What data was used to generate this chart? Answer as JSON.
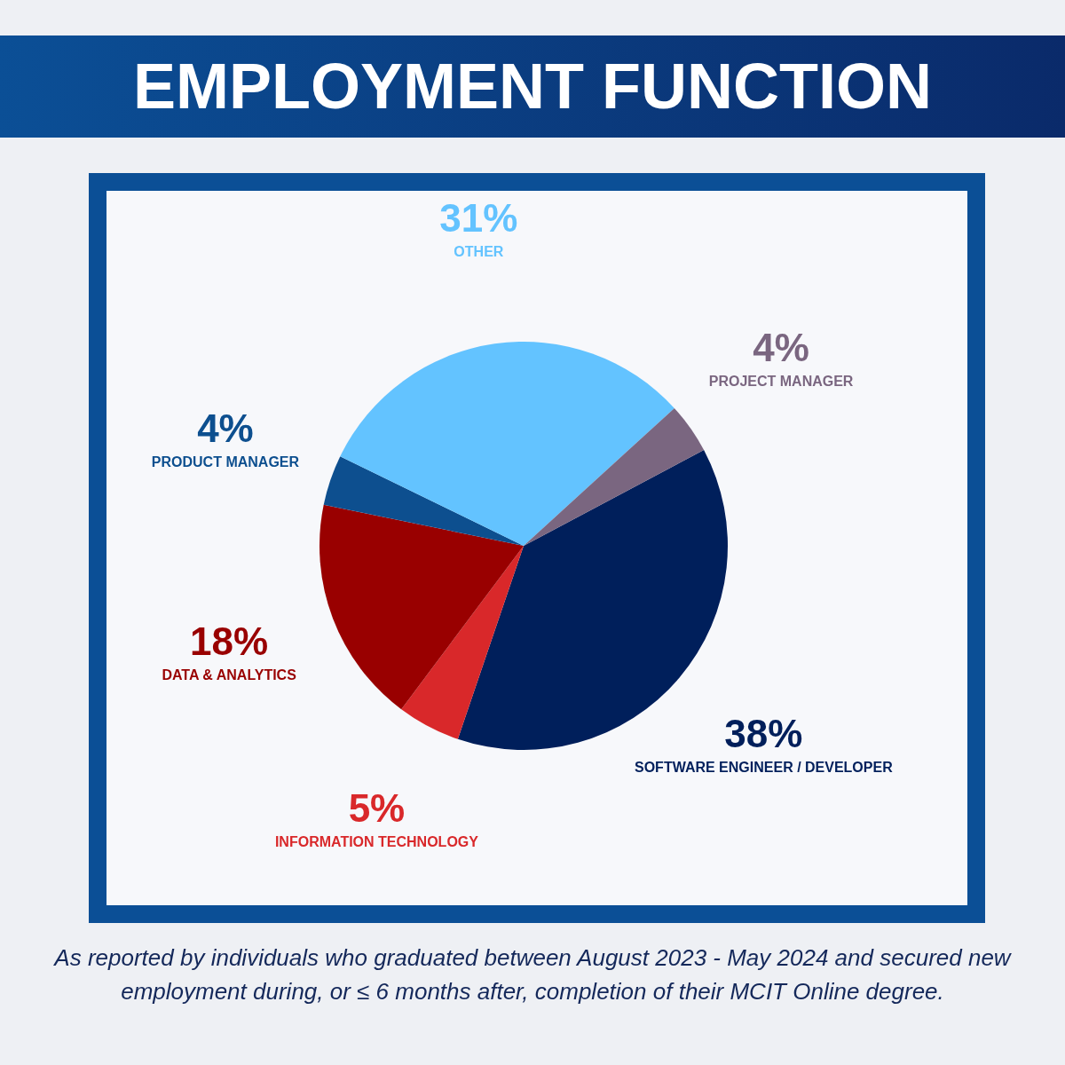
{
  "chart_data": {
    "type": "pie",
    "title": "EMPLOYMENT FUNCTION",
    "categories": [
      "SOFTWARE ENGINEER / DEVELOPER",
      "INFORMATION TECHNOLOGY",
      "DATA & ANALYTICS",
      "PRODUCT MANAGER",
      "OTHER",
      "PROJECT MANAGER"
    ],
    "values": [
      38,
      5,
      18,
      4,
      31,
      4
    ],
    "value_labels": [
      "38%",
      "5%",
      "18%",
      "4%",
      "31%",
      "4%"
    ],
    "colors": [
      "#001f5b",
      "#d9282a",
      "#990000",
      "#0d4f8f",
      "#63c3ff",
      "#7a6680"
    ],
    "annotations": [
      "As reported by individuals who graduated between August 2023 - May 2024 and secured new employment during, or ≤ 6 months after, completion of their MCIT Online degree."
    ]
  }
}
